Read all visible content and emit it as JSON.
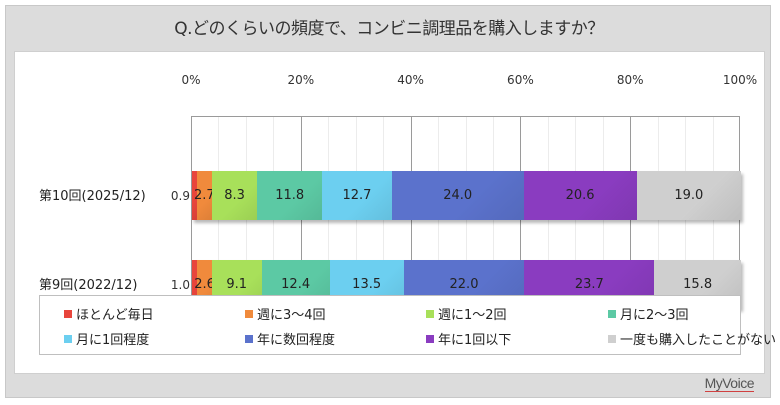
{
  "title": "Q.どのくらいの頻度で、コンビニ調理品を購入しますか？",
  "logo": "MyVoice",
  "chart_data": {
    "type": "bar",
    "orientation": "horizontal",
    "stacked": true,
    "percent_stacked": true,
    "title": "Q.どのくらいの頻度で、コンビニ調理品を購入しますか？",
    "xlabel": "",
    "ylabel": "",
    "xlim": [
      0,
      100
    ],
    "x_ticks": [
      "0%",
      "20%",
      "40%",
      "60%",
      "80%",
      "100%"
    ],
    "grid": true,
    "legend_position": "bottom",
    "categories": [
      "第10回(2025/12)",
      "第9回(2022/12)"
    ],
    "series": [
      {
        "name": "ほとんど毎日",
        "color": "#e8453c",
        "values": [
          0.9,
          1.0
        ]
      },
      {
        "name": "週に3～4回",
        "color": "#f08a3c",
        "values": [
          2.7,
          2.6
        ]
      },
      {
        "name": "週に1～2回",
        "color": "#a8e05a",
        "values": [
          8.3,
          9.1
        ]
      },
      {
        "name": "月に2～3回",
        "color": "#5cc9a4",
        "values": [
          11.8,
          12.4
        ]
      },
      {
        "name": "月に1回程度",
        "color": "#6ccff0",
        "values": [
          12.7,
          13.5
        ]
      },
      {
        "name": "年に数回程度",
        "color": "#5b72cc",
        "values": [
          24.0,
          22.0
        ]
      },
      {
        "name": "年に1回以下",
        "color": "#8a3cc0",
        "values": [
          20.6,
          23.7
        ]
      },
      {
        "name": "一度も購入したことがない",
        "color": "#cfcfcf",
        "values": [
          19.0,
          15.8
        ]
      }
    ]
  }
}
